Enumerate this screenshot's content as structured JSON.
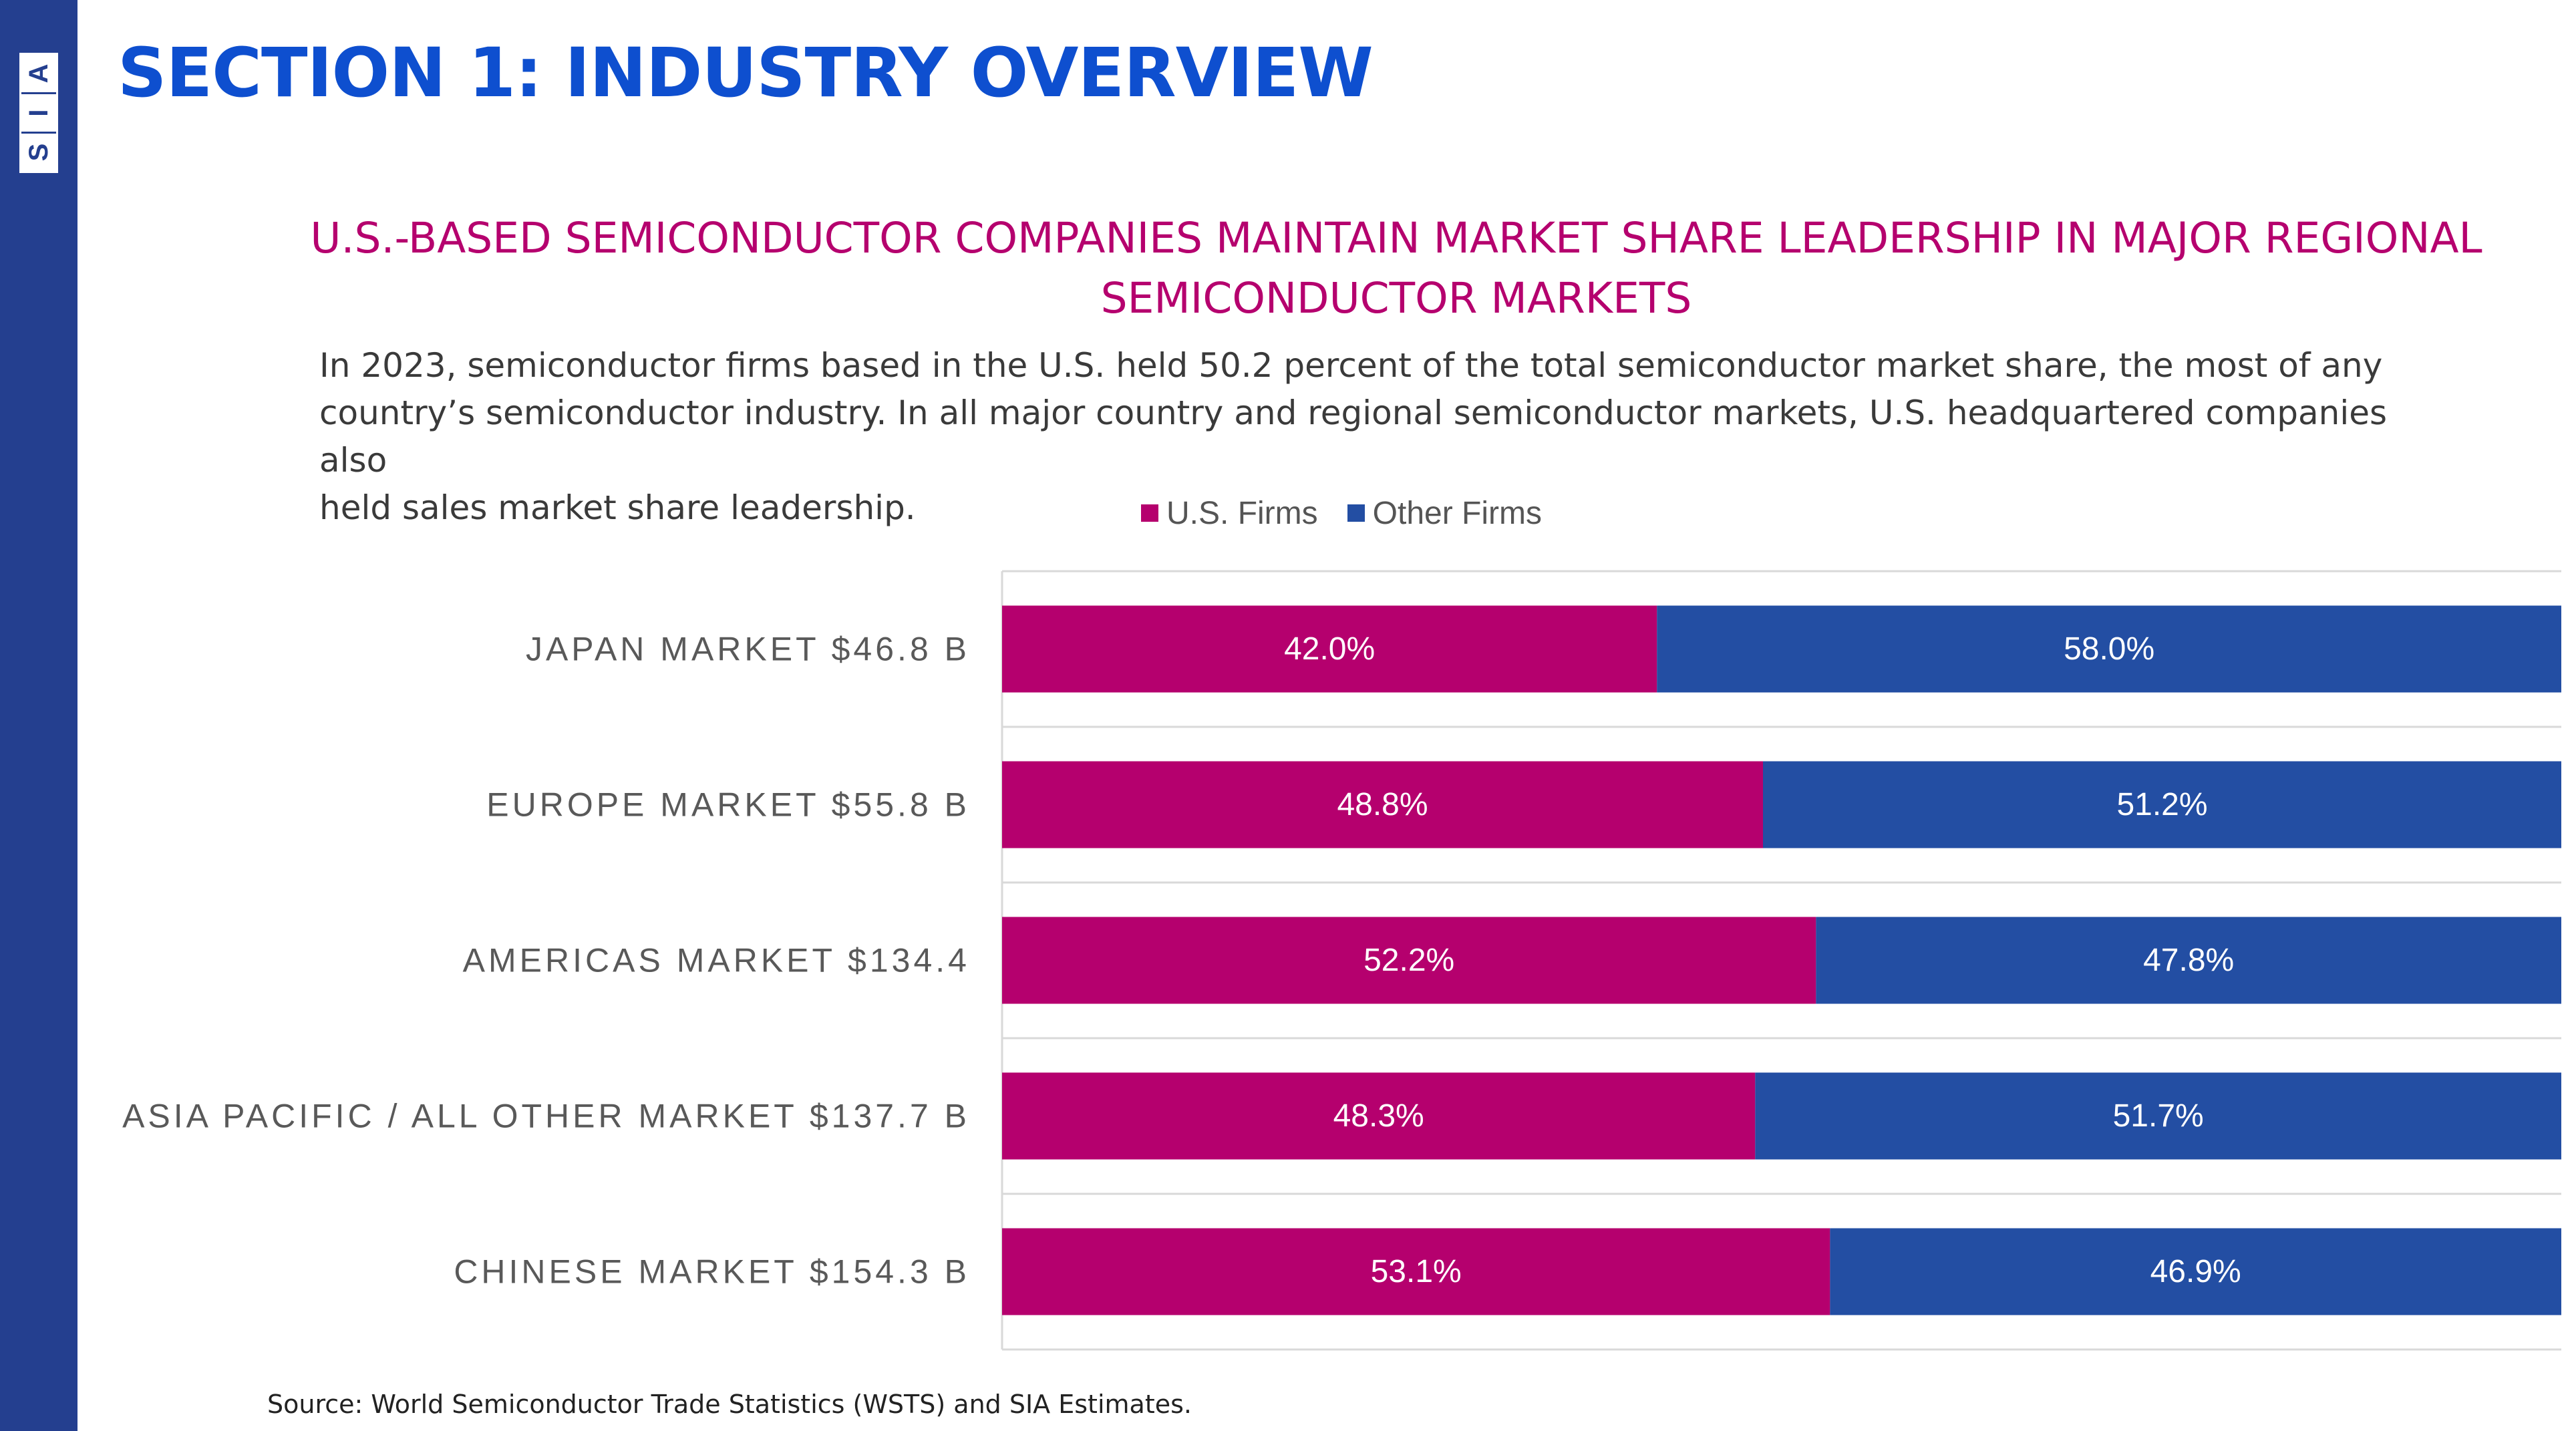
{
  "brand": {
    "logo_letters": [
      "A",
      "I",
      "S"
    ],
    "sidebar_color": "#243f8f"
  },
  "header": {
    "section_title": "SECTION 1: INDUSTRY OVERVIEW"
  },
  "chart_title_lines": [
    "U.S.-BASED SEMICONDUCTOR COMPANIES MAINTAIN MARKET SHARE LEADERSHIP IN MAJOR REGIONAL",
    "SEMICONDUCTOR MARKETS"
  ],
  "intro_lines": [
    "In 2023, semiconductor firms based in the U.S. held 50.2 percent of the total semiconductor market share, the most of any",
    "country’s semiconductor industry. In all major country and regional semiconductor markets, U.S. headquartered companies also",
    "held sales market share leadership."
  ],
  "source": "Source: World Semiconductor Trade Statistics (WSTS) and SIA Estimates.",
  "chart_data": {
    "type": "bar",
    "orientation": "horizontal",
    "stacked": "percent",
    "categories": [
      "JAPAN MARKET $46.8 B",
      "EUROPE MARKET $55.8 B",
      "AMERICAS MARKET $134.4",
      "ASIA PACIFIC / ALL OTHER MARKET $137.7 B",
      "CHINESE MARKET $154.3 B"
    ],
    "series": [
      {
        "name": "U.S. Firms",
        "color": "#b5006e",
        "values": [
          42.0,
          48.8,
          52.2,
          48.3,
          53.1
        ]
      },
      {
        "name": "Other Firms",
        "color": "#234ea3",
        "values": [
          58.0,
          51.2,
          47.8,
          51.7,
          46.9
        ]
      }
    ],
    "data_labels": [
      [
        "42.0%",
        "48.8%",
        "52.2%",
        "48.3%",
        "53.1%"
      ],
      [
        "58.0%",
        "51.2%",
        "47.8%",
        "51.7%",
        "46.9%"
      ]
    ],
    "xlim": [
      0,
      100
    ],
    "legend": "top-center",
    "grid": true
  }
}
